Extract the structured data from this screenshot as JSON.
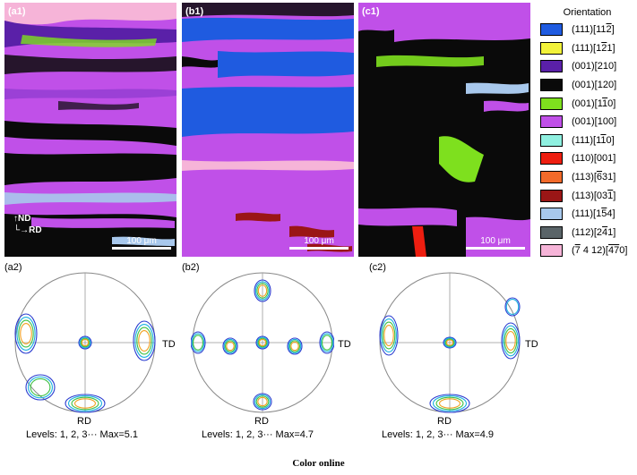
{
  "maps": [
    {
      "label": "(a1)",
      "scale": "100 μm"
    },
    {
      "label": "(b1)",
      "scale": "100 μm"
    },
    {
      "label": "(c1)",
      "scale": "100 μm"
    }
  ],
  "axes_marker": {
    "nd": "ND",
    "rd": "RD"
  },
  "legend": {
    "title": "Orientation",
    "items": [
      {
        "color": "#1f5be0",
        "plane": "(111)",
        "dir_html": "[11<span class=\"over\">2</span>]"
      },
      {
        "color": "#f2f23a",
        "plane": "(111)",
        "dir_html": "[1<span class=\"over\">2</span>1]"
      },
      {
        "color": "#5a20a8",
        "plane": "(001)",
        "dir_html": "[210]"
      },
      {
        "color": "#0a0a0a",
        "plane": "(001)",
        "dir_html": "[120]"
      },
      {
        "color": "#7ee01e",
        "plane": "(001)",
        "dir_html": "[1<span class=\"over\">1</span>0]"
      },
      {
        "color": "#c050e8",
        "plane": "(001)",
        "dir_html": "[100]"
      },
      {
        "color": "#8ff0e0",
        "plane": "(111)",
        "dir_html": "[1<span class=\"over\">1</span>0]"
      },
      {
        "color": "#ee1e10",
        "plane": "(110)",
        "dir_html": "[001]"
      },
      {
        "color": "#f26a2a",
        "plane": "(113)",
        "dir_html": "[<span class=\"over\">6</span>31]"
      },
      {
        "color": "#9a1616",
        "plane": "(113)",
        "dir_html": "[03<span class=\"over\">1</span>]"
      },
      {
        "color": "#a8c8ec",
        "plane": "(111)",
        "dir_html": "[1<span class=\"over\">5</span>4]"
      },
      {
        "color": "#5a6468",
        "plane": "(112)",
        "dir_html": "[2<span class=\"over\">4</span>1]"
      },
      {
        "color": "#f6b4d8",
        "plane_html": "(<span class=\"over\">7</span> 4 12)",
        "dir_html": "[<span class=\"over\">47</span>0]"
      }
    ]
  },
  "pole_figures": [
    {
      "label": "(a2)",
      "td": "TD",
      "rd": "RD",
      "levels": "Levels: 1, 2, 3··· Max=5.1"
    },
    {
      "label": "(b2)",
      "td": "TD",
      "rd": "RD",
      "levels": "Levels: 1, 2, 3··· Max=4.7"
    },
    {
      "label": "(c2)",
      "td": "TD",
      "rd": "RD",
      "levels": "Levels: 1, 2, 3··· Max=4.9"
    }
  ],
  "contour_colors": [
    "#2a3cd0",
    "#18b0e0",
    "#3cc040",
    "#f0a020",
    "#e03020"
  ],
  "caption": "Color online"
}
